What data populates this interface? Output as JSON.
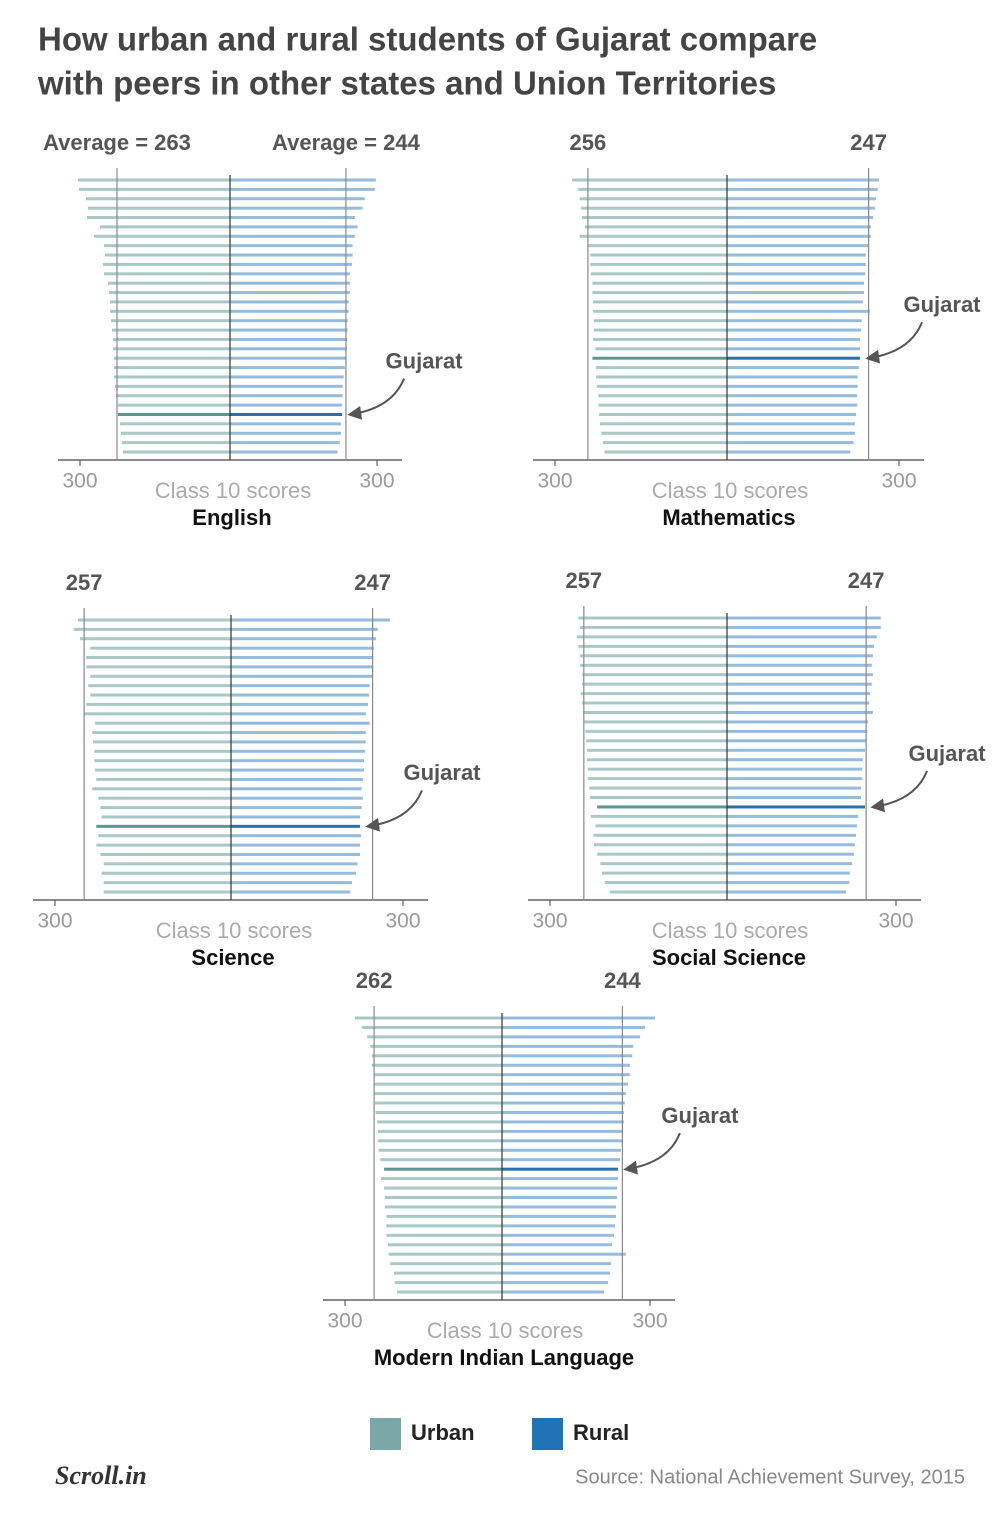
{
  "title": [
    "How urban and rural students of Gujarat compare",
    "with peers in other states and Union Territories"
  ],
  "legend": [
    {
      "name": "Urban",
      "color": "#7aa8a8"
    },
    {
      "name": "Rural",
      "color": "#1f73b7"
    }
  ],
  "logo": "Scroll.in",
  "source": "Source: National Achievement Survey, 2015",
  "chart_data": [
    {
      "type": "butterfly",
      "title": "English",
      "xlabel": "Class 10 scores",
      "annotation": "Gujarat",
      "highlight": 25,
      "series": [
        {
          "side": "left",
          "color": "#a9c9c7",
          "highlight_color": "#5e958f",
          "xlim": [
            150,
            300
          ],
          "xticks": [
            300
          ],
          "average": {
            "value": 263,
            "label": "Average = 263"
          },
          "values": [
            302,
            301,
            294,
            292,
            293,
            280,
            286,
            276,
            275,
            277,
            276,
            272,
            271,
            270,
            270,
            269,
            268,
            267,
            267,
            266,
            266,
            266,
            265,
            264,
            262,
            262,
            260,
            259,
            258,
            257
          ]
        },
        {
          "side": "right",
          "color": "#95bbdd",
          "highlight_color": "#2a6fb0",
          "xlim": [
            35,
            300
          ],
          "xticks": [
            300
          ],
          "average": {
            "value": 244,
            "label": "Average = 244"
          },
          "values": [
            298,
            296,
            278,
            274,
            260,
            265,
            260,
            256,
            256,
            255,
            251,
            251,
            251,
            249,
            249,
            247,
            247,
            246,
            246,
            244,
            242,
            240,
            238,
            238,
            237,
            237,
            235,
            235,
            233,
            229
          ]
        }
      ]
    },
    {
      "type": "butterfly",
      "title": "Mathematics",
      "xlabel": "Class 10 scores",
      "annotation": "Gujarat",
      "highlight": 19,
      "series": [
        {
          "side": "left",
          "color": "#a9c9c7",
          "highlight_color": "#5e958f",
          "xlim": [
            70,
            300
          ],
          "xticks": [
            300
          ],
          "average": 256,
          "values": [
            277,
            269,
            267,
            265,
            264,
            260,
            267,
            256,
            253,
            253,
            252,
            250,
            250,
            249,
            249,
            248,
            248,
            249,
            246,
            250,
            245,
            245,
            244,
            242,
            242,
            241,
            240,
            238,
            236,
            234
          ]
        },
        {
          "side": "right",
          "color": "#95bbdd",
          "highlight_color": "#2a6fb0",
          "xlim": [
            0,
            300
          ],
          "xticks": [
            300
          ],
          "average": 247,
          "values": [
            265,
            263,
            260,
            258,
            255,
            251,
            251,
            246,
            242,
            242,
            241,
            239,
            239,
            237,
            249,
            235,
            234,
            232,
            232,
            232,
            230,
            228,
            228,
            227,
            227,
            225,
            223,
            223,
            221,
            215
          ]
        }
      ]
    },
    {
      "type": "butterfly",
      "title": "Science",
      "xlabel": "Class 10 scores",
      "annotation": "Gujarat",
      "highlight": 22,
      "series": [
        {
          "side": "left",
          "color": "#a9c9c7",
          "highlight_color": "#5e958f",
          "xlim": [
            40,
            300
          ],
          "xticks": [
            300
          ],
          "average": 257,
          "values": [
            266,
            272,
            263,
            248,
            254,
            254,
            248,
            251,
            248,
            254,
            257,
            241,
            245,
            244,
            242,
            242,
            241,
            239,
            245,
            236,
            233,
            231,
            239,
            236,
            239,
            233,
            228,
            231,
            228,
            228
          ]
        },
        {
          "side": "right",
          "color": "#95bbdd",
          "highlight_color": "#2a6fb0",
          "xlim": [
            0,
            300
          ],
          "xticks": [
            300
          ],
          "average": 247,
          "values": [
            277,
            256,
            253,
            249,
            248,
            246,
            246,
            242,
            241,
            239,
            235,
            242,
            235,
            235,
            234,
            232,
            232,
            230,
            228,
            230,
            228,
            225,
            225,
            227,
            225,
            225,
            221,
            218,
            211,
            208
          ]
        }
      ]
    },
    {
      "type": "butterfly",
      "title": "Social Science",
      "xlabel": "Class 10 scores",
      "annotation": "Gujarat",
      "highlight": 20,
      "series": [
        {
          "side": "left",
          "color": "#a9c9c7",
          "highlight_color": "#5e958f",
          "xlim": [
            75,
            300
          ],
          "xticks": [
            300
          ],
          "average": 257,
          "values": [
            264,
            262,
            266,
            264,
            262,
            262,
            259,
            259,
            261,
            259,
            258,
            257,
            255,
            254,
            253,
            253,
            252,
            252,
            250,
            249,
            240,
            248,
            242,
            245,
            244,
            240,
            236,
            234,
            230,
            224
          ]
        },
        {
          "side": "right",
          "color": "#95bbdd",
          "highlight_color": "#2a6fb0",
          "xlim": [
            0,
            300
          ],
          "xticks": [
            300
          ],
          "average": 247,
          "values": [
            273,
            273,
            266,
            261,
            259,
            257,
            259,
            257,
            254,
            252,
            259,
            250,
            249,
            247,
            245,
            241,
            240,
            240,
            238,
            238,
            245,
            233,
            231,
            229,
            227,
            225,
            222,
            218,
            217,
            211
          ]
        }
      ]
    },
    {
      "type": "butterfly",
      "title": "Modern Indian Language",
      "xlabel": "Class 10 scores",
      "annotation": "Gujarat",
      "highlight": 16,
      "series": [
        {
          "side": "left",
          "color": "#a9c9c7",
          "highlight_color": "#5e958f",
          "xlim": [
            95,
            300
          ],
          "xticks": [
            300
          ],
          "average": 262,
          "values": [
            287,
            278,
            271,
            267,
            265,
            265,
            263,
            263,
            262,
            261,
            260,
            258,
            257,
            257,
            256,
            254,
            249,
            253,
            249,
            248,
            248,
            246,
            246,
            246,
            244,
            243,
            241,
            236,
            235,
            232
          ]
        },
        {
          "side": "right",
          "color": "#95bbdd",
          "highlight_color": "#2a6fb0",
          "xlim": [
            0,
            300
          ],
          "xticks": [
            300
          ],
          "average": 244,
          "values": [
            310,
            290,
            280,
            266,
            264,
            259,
            259,
            255,
            251,
            249,
            247,
            247,
            243,
            243,
            241,
            239,
            235,
            235,
            233,
            233,
            231,
            231,
            229,
            227,
            223,
            251,
            221,
            219,
            215,
            207
          ]
        }
      ]
    }
  ]
}
